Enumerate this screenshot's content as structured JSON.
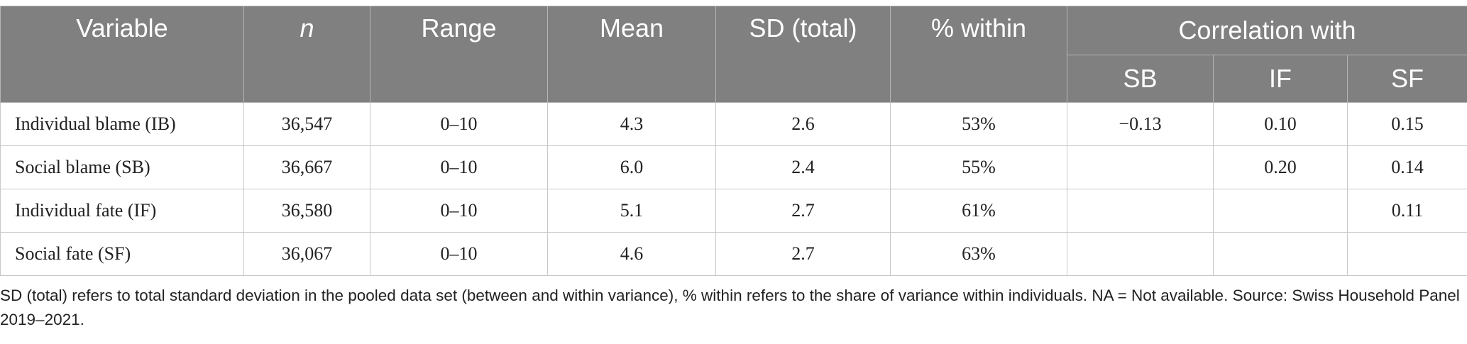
{
  "table": {
    "headers": {
      "variable": "Variable",
      "n": "n",
      "range": "Range",
      "mean": "Mean",
      "sd": "SD (total)",
      "within": "% within",
      "correlation": "Correlation with",
      "sub": [
        "SB",
        "IF",
        "SF"
      ]
    },
    "rows": [
      {
        "name": "Individual blame (IB)",
        "n": "36,547",
        "range": "0–10",
        "mean": "4.3",
        "sd": "2.6",
        "within": "53%",
        "sb": "−0.13",
        "if": "0.10",
        "sf": "0.15"
      },
      {
        "name": "Social blame (SB)",
        "n": "36,667",
        "range": "0–10",
        "mean": "6.0",
        "sd": "2.4",
        "within": "55%",
        "sb": "",
        "if": "0.20",
        "sf": "0.14"
      },
      {
        "name": "Individual fate (IF)",
        "n": "36,580",
        "range": "0–10",
        "mean": "5.1",
        "sd": "2.7",
        "within": "61%",
        "sb": "",
        "if": "",
        "sf": "0.11"
      },
      {
        "name": "Social fate (SF)",
        "n": "36,067",
        "range": "0–10",
        "mean": "4.6",
        "sd": "2.7",
        "within": "63%",
        "sb": "",
        "if": "",
        "sf": ""
      }
    ]
  },
  "footnote": "SD (total) refers to total standard deviation in the pooled data set (between and within variance), % within refers to the share of variance within individuals. NA = Not available. Source: Swiss Household Panel 2019–2021.",
  "colors": {
    "header_bg": "#808080",
    "header_text": "#ffffff",
    "border": "#c8c8c8"
  }
}
